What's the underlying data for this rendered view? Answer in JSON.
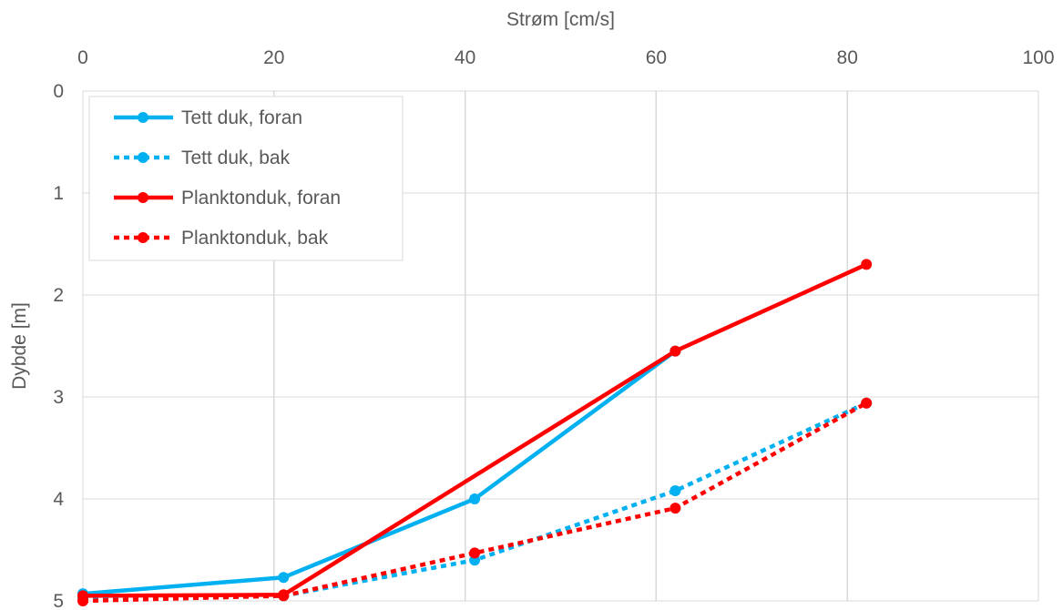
{
  "chart_data": {
    "type": "line",
    "title": "",
    "xlabel": "Strøm [cm/s]",
    "ylabel": "Dybde [m]",
    "xlim": [
      0,
      100
    ],
    "ylim": [
      0,
      5
    ],
    "y_inverted": true,
    "x_axis_position": "top",
    "grid": true,
    "legend_position": "top-left",
    "x_ticks": [
      "0",
      "20",
      "40",
      "60",
      "80",
      "100"
    ],
    "y_ticks": [
      "0",
      "1",
      "2",
      "3",
      "4",
      "5"
    ],
    "series": [
      {
        "name": "Tett duk, foran",
        "color": "#00b0f0",
        "dashed": false,
        "points": [
          [
            0,
            4.93
          ],
          [
            21,
            4.77
          ],
          [
            41,
            4.0
          ],
          [
            62,
            2.55
          ]
        ]
      },
      {
        "name": "Tett duk, bak",
        "color": "#00b0f0",
        "dashed": true,
        "points": [
          [
            0,
            4.97
          ],
          [
            21,
            4.95
          ],
          [
            41,
            4.6
          ],
          [
            62,
            3.92
          ],
          [
            82,
            3.06
          ]
        ]
      },
      {
        "name": "Planktonduk, foran",
        "color": "#ff0000",
        "dashed": false,
        "points": [
          [
            0,
            4.95
          ],
          [
            21,
            4.94
          ],
          [
            62,
            2.55
          ],
          [
            82,
            1.7
          ]
        ]
      },
      {
        "name": "Planktonduk, bak",
        "color": "#ff0000",
        "dashed": true,
        "points": [
          [
            0,
            5.0
          ],
          [
            21,
            4.95
          ],
          [
            41,
            4.53
          ],
          [
            62,
            4.09
          ],
          [
            82,
            3.06
          ]
        ]
      }
    ]
  }
}
